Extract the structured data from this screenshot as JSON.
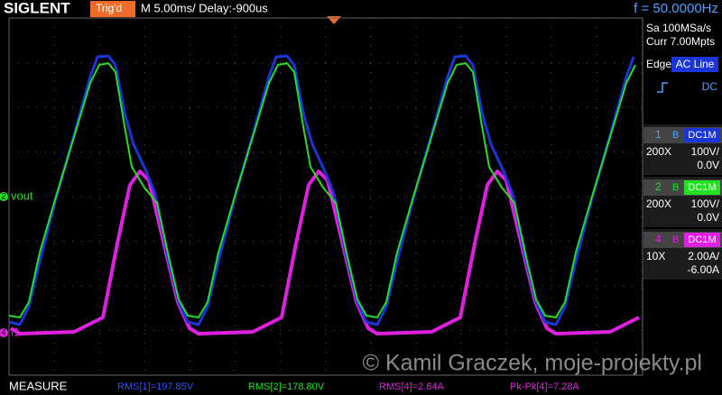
{
  "header": {
    "brand": "SIGLENT",
    "trigger_status": "Trig'd",
    "timebase": "M 5.00ms/ Delay:-900us",
    "frequency": "f = 50.0000Hz"
  },
  "acquisition": {
    "sample_rate": "Sa 100MSa/s",
    "memory": "Curr 7.00Mpts"
  },
  "trigger": {
    "type": "Edge",
    "source": "AC Line",
    "coupling": "DC"
  },
  "channels": [
    {
      "number": "1",
      "bandwidth": "B",
      "coupling": "DC1M",
      "probe": "200X",
      "scale": "100V/",
      "offset": "0.0V"
    },
    {
      "number": "2",
      "bandwidth": "B",
      "coupling": "DC1M",
      "probe": "200X",
      "scale": "100V/",
      "offset": "0.0V"
    },
    {
      "number": "4",
      "bandwidth": "B",
      "coupling": "DC1M",
      "probe": "10X",
      "scale": "2.00A/",
      "offset": "-6.00A"
    }
  ],
  "trace_labels": [
    {
      "number": "2",
      "label": "vout"
    },
    {
      "number": "4",
      "label": "i1"
    }
  ],
  "measure": {
    "title": "MEASURE",
    "items": [
      "RMS[1]=197.85V",
      "RMS[2]=178.80V",
      "RMS[4]=2.64A",
      "Pk-Pk[4]=7.28A"
    ]
  },
  "watermark": "© Kamil Graczek, moje-projekty.pl"
}
